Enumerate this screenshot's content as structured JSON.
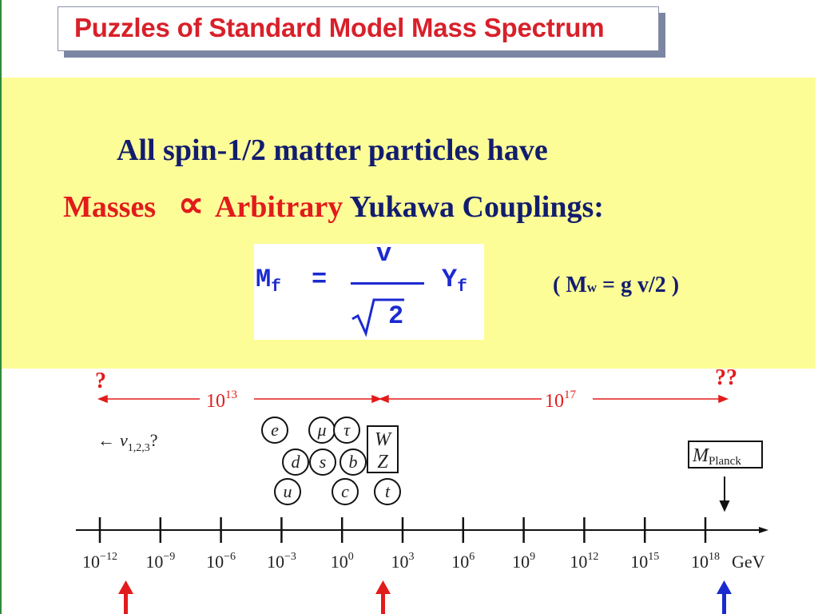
{
  "slide": {
    "title": "Puzzles of Standard Model Mass Spectrum",
    "statement": {
      "line1": "All spin-1/2 matter particles have",
      "masses": "Masses",
      "propto": "∝",
      "arbitrary": "Arbitrary",
      "yukawa": "Yukawa Couplings:"
    },
    "formula": {
      "lhs_main": "M",
      "lhs_sub": "f",
      "equals": "=",
      "numerator": "v",
      "radical": "√",
      "radicand": "2",
      "rhs_main": "Y",
      "rhs_sub": "f"
    },
    "w_mass": {
      "open": "( M",
      "sub": "w",
      "rest": " =  g v/2 )"
    }
  },
  "diagram": {
    "question_left": "?",
    "question_right": "??",
    "span_left": {
      "base": "10",
      "exp": "13"
    },
    "span_right": {
      "base": "10",
      "exp": "17"
    },
    "neutrino_label": {
      "arrow": "←",
      "nu": "ν",
      "sub": "1,2,3",
      "q": "?"
    },
    "particles": [
      "e",
      "μ",
      "τ",
      "d",
      "s",
      "b",
      "u",
      "c",
      "t"
    ],
    "bosons": [
      "W",
      "Z"
    ],
    "planck": {
      "main": "M",
      "sub": "Planck"
    },
    "axis": {
      "ticks": [
        {
          "base": "10",
          "exp": "−12"
        },
        {
          "base": "10",
          "exp": "−9"
        },
        {
          "base": "10",
          "exp": "−6"
        },
        {
          "base": "10",
          "exp": "−3"
        },
        {
          "base": "10",
          "exp": "0"
        },
        {
          "base": "10",
          "exp": "3"
        },
        {
          "base": "10",
          "exp": "6"
        },
        {
          "base": "10",
          "exp": "9"
        },
        {
          "base": "10",
          "exp": "12"
        },
        {
          "base": "10",
          "exp": "15"
        },
        {
          "base": "10",
          "exp": "18"
        }
      ],
      "unit": "GeV"
    },
    "colors": {
      "red": "#e21b1b",
      "blue": "#1b2ad0",
      "navy": "#121d6e",
      "yellow": "#fdfd98"
    }
  }
}
